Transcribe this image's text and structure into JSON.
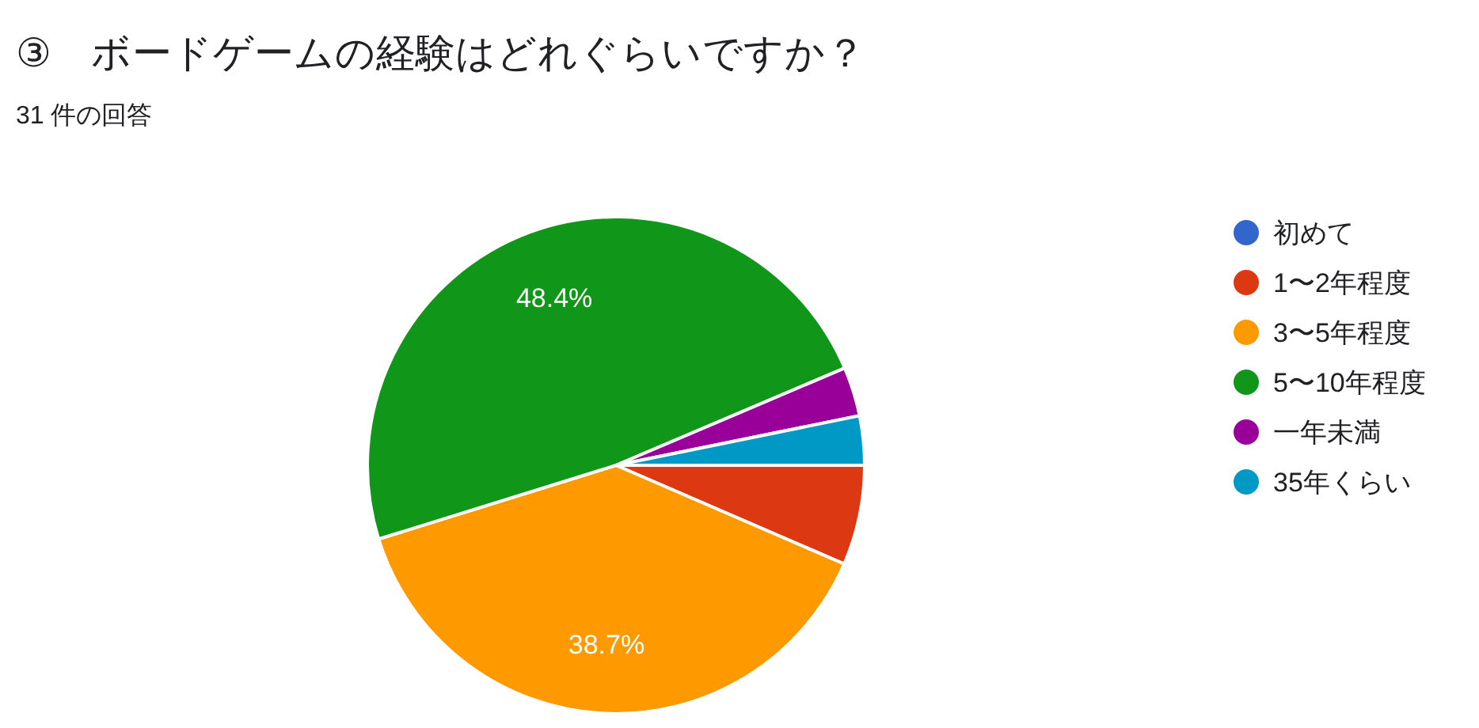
{
  "chart_data": {
    "type": "pie",
    "title": "③　ボードゲームの経験はどれぐらいですか？",
    "subtitle": "31 件の回答",
    "categories": [
      "初めて",
      "1〜2年程度",
      "3〜5年程度",
      "5〜10年程度",
      "一年未満",
      "35年くらい"
    ],
    "values": [
      0,
      6.5,
      38.7,
      48.4,
      3.2,
      3.2
    ],
    "colors": [
      "#3366cc",
      "#dc3912",
      "#ff9900",
      "#109618",
      "#990099",
      "#0099c6"
    ],
    "value_labels": [
      null,
      null,
      "38.7%",
      "48.4%",
      null,
      null
    ],
    "legend": "right"
  }
}
